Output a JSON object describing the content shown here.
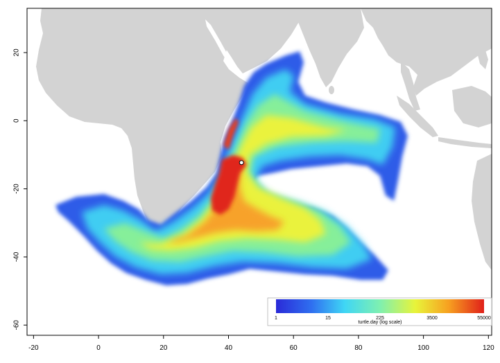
{
  "map": {
    "x_axis": {
      "range": [
        -22,
        121
      ],
      "ticks": [
        -20,
        0,
        20,
        40,
        60,
        80,
        100,
        120
      ],
      "tick_labels": [
        "-20",
        "0",
        "20",
        "40",
        "60",
        "80",
        "100",
        "120"
      ]
    },
    "y_axis": {
      "range": [
        -63,
        33
      ],
      "ticks": [
        20,
        0,
        -20,
        -40,
        -60
      ],
      "tick_labels": [
        "20",
        "0",
        "-20",
        "-40",
        "-60"
      ]
    },
    "land_color": "#d3d3d3",
    "ocean_color": "#ffffff",
    "release_point": {
      "lon": 44,
      "lat": -12.3
    }
  },
  "colorbar": {
    "tick_labels": [
      "1",
      "15",
      "225",
      "3500",
      "55000"
    ],
    "title": "turtle.day (log scale)",
    "colors": [
      "#2a2ad8",
      "#2f6ff0",
      "#3fd6f5",
      "#7ff0b0",
      "#e8f43a",
      "#f7a020",
      "#e0201a"
    ]
  },
  "chart_data": {
    "type": "heatmap",
    "x": "longitude",
    "y": "latitude",
    "xlim": [
      -22,
      121
    ],
    "ylim": [
      -63,
      33
    ],
    "value_label": "turtle.day (log scale)",
    "scale": "log",
    "value_range": [
      1,
      55000
    ],
    "colorbar_ticks": [
      1,
      15,
      225,
      3500,
      55000
    ]
  }
}
